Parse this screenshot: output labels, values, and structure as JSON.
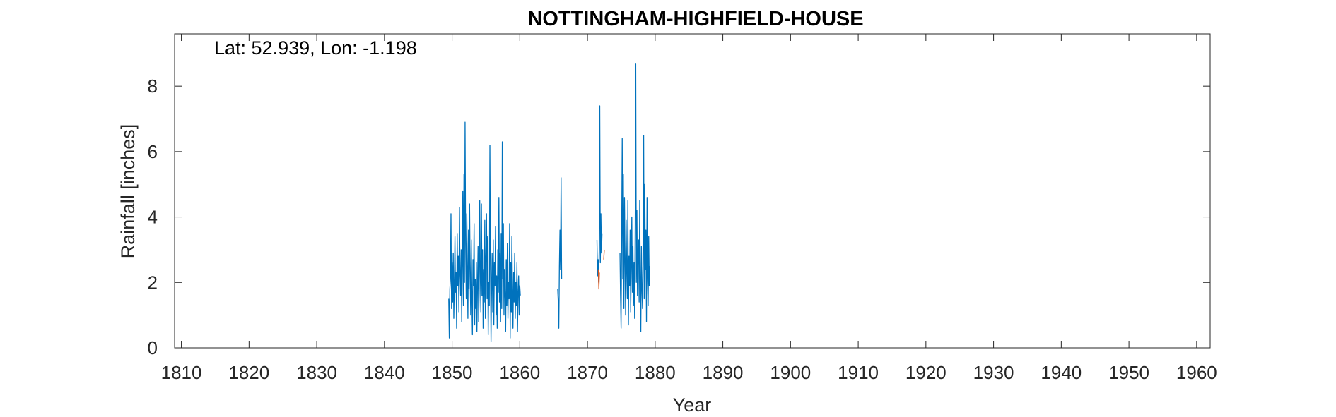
{
  "chart_data": {
    "type": "line",
    "title": "NOTTINGHAM-HIGHFIELD-HOUSE",
    "annotation": "Lat: 52.939, Lon: -1.198",
    "xlabel": "Year",
    "ylabel": "Rainfall [inches]",
    "xlim": [
      1809,
      1962
    ],
    "ylim": [
      0,
      9.6
    ],
    "xticks": [
      1810,
      1820,
      1830,
      1840,
      1850,
      1860,
      1870,
      1880,
      1890,
      1900,
      1910,
      1920,
      1930,
      1940,
      1950,
      1960
    ],
    "yticks": [
      0,
      2,
      4,
      6,
      8
    ],
    "grid": false,
    "series": [
      {
        "color": "#0072BD",
        "segments": [
          {
            "x_start": 1849.5,
            "step": 0.0833,
            "values": [
              1.5,
              0.3,
              1.8,
              2.1,
              4.1,
              1.2,
              2.6,
              1.4,
              2.9,
              0.9,
              2.0,
              3.4,
              1.7,
              2.3,
              0.6,
              3.5,
              1.9,
              2.8,
              1.1,
              4.3,
              2.2,
              1.6,
              3.0,
              0.8,
              2.5,
              4.8,
              1.3,
              5.3,
              2.0,
              6.9,
              3.2,
              1.5,
              4.1,
              2.4,
              0.9,
              3.6,
              1.8,
              4.4,
              2.2,
              1.0,
              3.3,
              1.6,
              0.4,
              2.7,
              1.9,
              3.8,
              0.7,
              2.1,
              1.2,
              2.6,
              0.5,
              1.9,
              3.1,
              0.8,
              1.7,
              4.5,
              2.3,
              1.1,
              4.4,
              1.6,
              3.0,
              0.6,
              2.4,
              1.4,
              3.9,
              0.9,
              2.8,
              4.1,
              1.5,
              3.4,
              0.4,
              2.0,
              1.3,
              6.2,
              2.5,
              0.2,
              1.8,
              2.9,
              1.1,
              3.3,
              0.7,
              2.6,
              1.9,
              3.7,
              1.0,
              2.2,
              0.6,
              3.0,
              1.7,
              4.6,
              1.4,
              2.9,
              0.8,
              3.5,
              1.2,
              6.3,
              2.1,
              3.8,
              1.0,
              2.4,
              1.6,
              0.5,
              2.7,
              1.3,
              3.2,
              0.9,
              2.0,
              1.5,
              3.8,
              0.3,
              2.6,
              1.1,
              3.4,
              1.8,
              0.6,
              2.3,
              1.4,
              2.9,
              0.9,
              2.0,
              1.3,
              2.6,
              0.5,
              1.7,
              2.2,
              1.0,
              1.9,
              1.6
            ]
          },
          {
            "x_start": 1865.6,
            "step": 0.0833,
            "values": [
              1.8,
              1.4,
              0.6,
              2.5,
              3.6,
              2.4,
              5.2,
              2.1
            ]
          },
          {
            "x_start": 1871.4,
            "step": 0.0833,
            "values": [
              3.3,
              2.2,
              2.7,
              2.0,
              3.0,
              7.4,
              2.6,
              4.1,
              2.9,
              3.5
            ]
          },
          {
            "x_start": 1874.8,
            "step": 0.0833,
            "values": [
              2.9,
              1.6,
              0.6,
              3.4,
              6.4,
              2.1,
              5.3,
              1.2,
              4.6,
              2.7,
              1.0,
              3.9,
              2.3,
              1.5,
              4.5,
              0.7,
              2.8,
              1.9,
              3.6,
              1.1,
              2.4,
              4.0,
              1.7,
              3.1,
              1.3,
              2.6,
              0.9,
              3.8,
              8.7,
              2.0,
              4.2,
              1.6,
              2.9,
              3.3,
              1.4,
              4.5,
              2.2,
              0.5,
              3.1,
              1.8,
              1.2,
              2.7,
              6.5,
              1.5,
              5.0,
              2.4,
              3.6,
              0.8,
              4.6,
              2.1,
              1.3,
              3.4,
              1.9,
              2.5
            ]
          }
        ]
      },
      {
        "color": "#D95319",
        "segments": [
          {
            "x_start": 1871.6,
            "step": 0.0833,
            "values": [
              2.4,
              1.8,
              2.3
            ]
          },
          {
            "x_start": 1872.4,
            "step": 0.0833,
            "values": [
              2.7,
              3.0
            ]
          }
        ]
      }
    ]
  }
}
